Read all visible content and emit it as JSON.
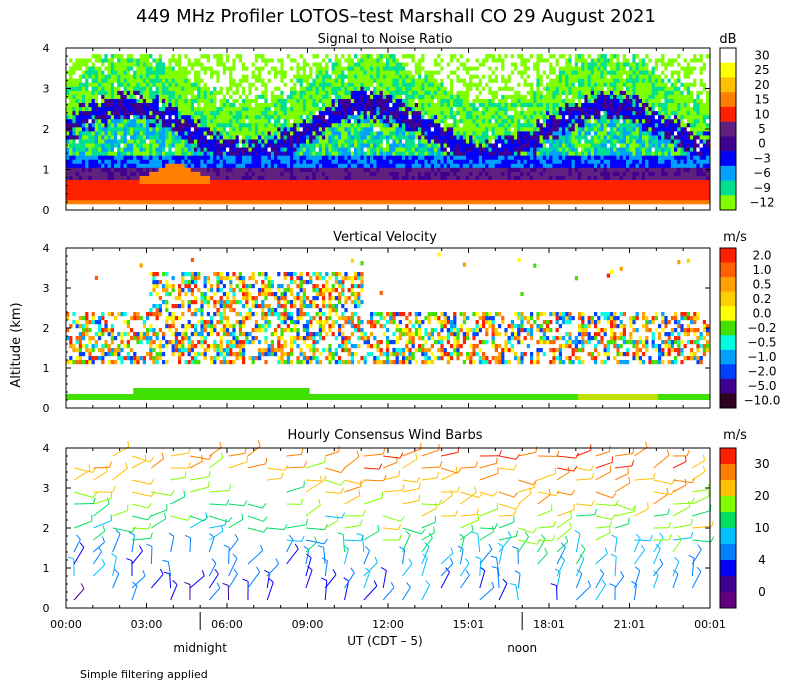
{
  "title": "449 MHz Profiler LOTOS–test Marshall CO 29 August 2021",
  "footnote": "Simple filtering applied",
  "ylabel": "Altitude (km)",
  "xlabel": "UT  (CDT – 5)",
  "time_ticks": [
    "00:00",
    "03:00",
    "06:00",
    "09:00",
    "12:00",
    "15:01",
    "18:01",
    "21:01",
    "00:01"
  ],
  "y_ticks": [
    "0",
    "1",
    "2",
    "3",
    "4"
  ],
  "local_markers": [
    {
      "label": "midnight",
      "hour": 5.0
    },
    {
      "label": "noon",
      "hour": 17.0
    }
  ],
  "colors": {
    "axis": "#000000",
    "grid": "#000000"
  },
  "chart_data": [
    {
      "type": "heatmap",
      "title": "Signal to Noise Ratio",
      "units": "dB",
      "xlim_hours": [
        0,
        24.0
      ],
      "ylim_km": [
        0,
        4
      ],
      "colorbar_labels": [
        "30",
        "25",
        "20",
        "15",
        "10",
        "5",
        "0",
        "−3",
        "−6",
        "−9",
        "−12"
      ],
      "colorbar_colors": [
        "#ffffff",
        "#ffff00",
        "#ffc000",
        "#ff8000",
        "#ff2000",
        "#602080",
        "#400090",
        "#0000ff",
        "#00a0ff",
        "#00e090",
        "#80ff00"
      ],
      "description_layers": [
        {
          "from_km": 0.15,
          "to_km": 0.25,
          "level": "15"
        },
        {
          "from_km": 0.25,
          "to_km": 0.65,
          "level": "10"
        },
        {
          "from_km": 0.65,
          "to_km": 1.0,
          "level": "5"
        },
        {
          "from_km": 1.0,
          "to_km": 1.3,
          "level": "−3"
        },
        {
          "from_km": 1.3,
          "to_km": 2.2,
          "level": "−6"
        },
        {
          "from_km": 2.2,
          "to_km": 3.3,
          "level": "−9"
        }
      ]
    },
    {
      "type": "heatmap",
      "title": "Vertical Velocity",
      "units": "m/s",
      "xlim_hours": [
        0,
        24.0
      ],
      "ylim_km": [
        0,
        4
      ],
      "colorbar_labels": [
        "2.0",
        "1.0",
        "0.5",
        "0.2",
        "0.0",
        "−0.2",
        "−0.5",
        "−1.0",
        "−2.0",
        "−5.0",
        "−10.0"
      ],
      "colorbar_colors": [
        "#ff2000",
        "#ff6000",
        "#ffa000",
        "#ffd000",
        "#ffff00",
        "#40e000",
        "#00ffe0",
        "#00a0ff",
        "#0040ff",
        "#400090",
        "#300020"
      ],
      "band_low_km": [
        0.2,
        0.35
      ]
    },
    {
      "type": "scatter",
      "title": "Hourly Consensus Wind Barbs",
      "units": "m/s",
      "xlim_hours": [
        0,
        24.0
      ],
      "ylim_km": [
        0,
        4
      ],
      "colorbar_labels": [
        "30",
        "20",
        "10",
        "4",
        "0"
      ],
      "colorbar_colors": [
        "#ff2000",
        "#ff8000",
        "#ffc000",
        "#80ff00",
        "#00e060",
        "#00c0ff",
        "#0080ff",
        "#0000ff",
        "#400090",
        "#600080"
      ]
    }
  ]
}
